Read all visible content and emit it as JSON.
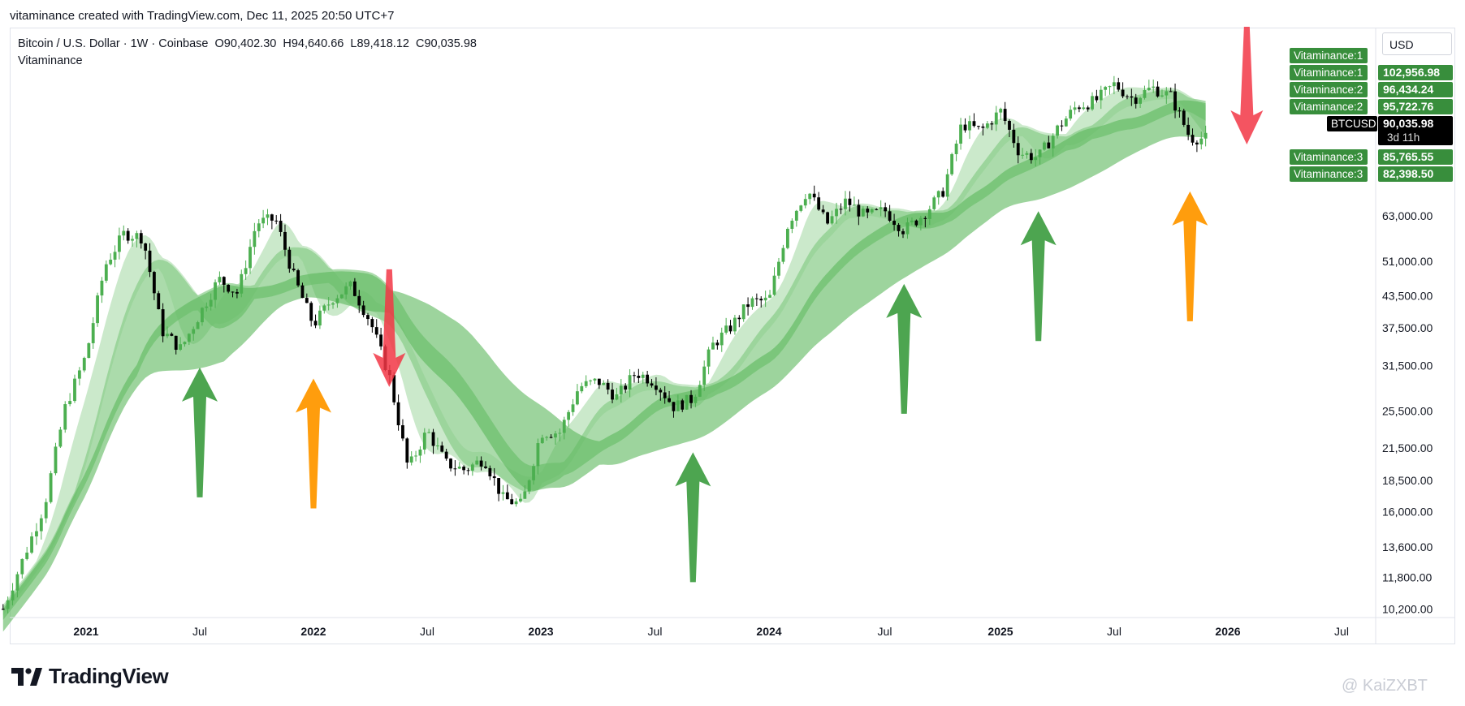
{
  "caption": "vitaminance created with TradingView.com, Dec 11, 2025 20:50 UTC+7",
  "legend": {
    "title": "Bitcoin / U.S. Dollar · 1W · Coinbase",
    "open": "O90,402.30",
    "high": "H94,640.66",
    "low": "L89,418.12",
    "close": "C90,035.98",
    "indicator": "Vitaminance"
  },
  "currency": "USD",
  "brand": "TradingView",
  "watermark": "@ KaiZXBT",
  "colors": {
    "up": "#4caf50",
    "down": "#000000",
    "band_light": "#b9e1b9",
    "band_mid": "#88cc88",
    "band_dark": "#5cb85c",
    "label_green": "#388e3c",
    "arrow_green": "#43a047",
    "arrow_orange": "#ff9800",
    "arrow_red": "#f23645"
  },
  "chart_data": {
    "type": "candlestick",
    "y_scale": "log",
    "ylim": [
      9800,
      150000
    ],
    "y_ticks": [
      "63,000.00",
      "51,000.00",
      "43,500.00",
      "37,500.00",
      "31,500.00",
      "25,500.00",
      "21,500.00",
      "18,500.00",
      "16,000.00",
      "13,600.00",
      "11,800.00",
      "10,200.00"
    ],
    "x_ticks": [
      "2021",
      "Jul",
      "2022",
      "Jul",
      "2023",
      "Jul",
      "2024",
      "Jul",
      "2025",
      "Jul",
      "2026",
      "Jul"
    ],
    "x_tick_dates": [
      "2021-01",
      "2021-07",
      "2022-01",
      "2022-07",
      "2023-01",
      "2023-07",
      "2024-01",
      "2024-07",
      "2025-01",
      "2025-07",
      "2026-01",
      "2026-07"
    ],
    "price_path": [
      [
        "2020-09",
        10200
      ],
      [
        "2020-11",
        16500
      ],
      [
        "2020-12",
        26000
      ],
      [
        "2021-01",
        33000
      ],
      [
        "2021-02",
        50000
      ],
      [
        "2021-03",
        58000
      ],
      [
        "2021-04",
        57000
      ],
      [
        "2021-05",
        37000
      ],
      [
        "2021-06",
        34000
      ],
      [
        "2021-07",
        40000
      ],
      [
        "2021-08",
        47000
      ],
      [
        "2021-09",
        44000
      ],
      [
        "2021-10",
        61000
      ],
      [
        "2021-11",
        62000
      ],
      [
        "2021-12",
        47000
      ],
      [
        "2022-01",
        38000
      ],
      [
        "2022-02",
        43000
      ],
      [
        "2022-03",
        45500
      ],
      [
        "2022-04",
        38600
      ],
      [
        "2022-05",
        30000
      ],
      [
        "2022-06",
        19500
      ],
      [
        "2022-07",
        23300
      ],
      [
        "2022-08",
        20000
      ],
      [
        "2022-09",
        19400
      ],
      [
        "2022-10",
        20500
      ],
      [
        "2022-11",
        17000
      ],
      [
        "2022-12",
        16500
      ],
      [
        "2023-01",
        23100
      ],
      [
        "2023-02",
        23100
      ],
      [
        "2023-03",
        28500
      ],
      [
        "2023-04",
        29300
      ],
      [
        "2023-05",
        27200
      ],
      [
        "2023-06",
        30500
      ],
      [
        "2023-07",
        29200
      ],
      [
        "2023-08",
        26000
      ],
      [
        "2023-09",
        27000
      ],
      [
        "2023-10",
        34500
      ],
      [
        "2023-11",
        37700
      ],
      [
        "2023-12",
        42300
      ],
      [
        "2024-01",
        42500
      ],
      [
        "2024-02",
        61000
      ],
      [
        "2024-03",
        71000
      ],
      [
        "2024-04",
        60600
      ],
      [
        "2024-05",
        67500
      ],
      [
        "2024-06",
        62700
      ],
      [
        "2024-07",
        64600
      ],
      [
        "2024-08",
        58900
      ],
      [
        "2024-09",
        63300
      ],
      [
        "2024-10",
        70200
      ],
      [
        "2024-11",
        96400
      ],
      [
        "2024-12",
        93400
      ],
      [
        "2025-01",
        102400
      ],
      [
        "2025-02",
        84300
      ],
      [
        "2025-03",
        82500
      ],
      [
        "2025-04",
        94200
      ],
      [
        "2025-05",
        104600
      ],
      [
        "2025-06",
        107100
      ],
      [
        "2025-07",
        115700
      ],
      [
        "2025-08",
        108200
      ],
      [
        "2025-09",
        114000
      ],
      [
        "2025-10",
        109500
      ],
      [
        "2025-11",
        90400
      ],
      [
        "2025-12",
        90036
      ]
    ],
    "price_labels": [
      {
        "text": "Vitaminance:1",
        "value": null,
        "kind": "green"
      },
      {
        "text": "Vitaminance:1",
        "value": "102,956.98",
        "kind": "green"
      },
      {
        "text": "Vitaminance:2",
        "value": "96,434.24",
        "kind": "green"
      },
      {
        "text": "Vitaminance:2",
        "value": "95,722.76",
        "kind": "green"
      },
      {
        "text": "BTCUSD",
        "value": "90,035.98",
        "sub": "3d 11h",
        "kind": "black"
      },
      {
        "text": "Vitaminance:3",
        "value": "85,765.55",
        "kind": "green"
      },
      {
        "text": "Vitaminance:3",
        "value": "82,398.50",
        "kind": "green"
      }
    ],
    "arrows": [
      {
        "color": "green",
        "dir": "up",
        "date": "2021-07"
      },
      {
        "color": "orange",
        "dir": "up",
        "date": "2022-01"
      },
      {
        "color": "red",
        "dir": "down",
        "date": "2022-05"
      },
      {
        "color": "green",
        "dir": "up",
        "date": "2023-09"
      },
      {
        "color": "green",
        "dir": "up",
        "date": "2024-08"
      },
      {
        "color": "green",
        "dir": "up",
        "date": "2025-03"
      },
      {
        "color": "orange",
        "dir": "up",
        "date": "2025-11"
      },
      {
        "color": "red",
        "dir": "down",
        "date": "2026-02"
      }
    ]
  }
}
